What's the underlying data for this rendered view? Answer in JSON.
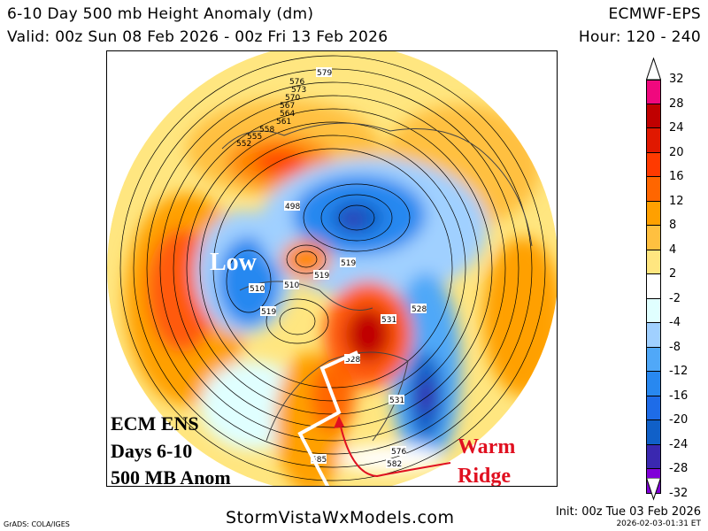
{
  "header": {
    "title": "6-10 Day 500 mb Height Anomaly (dm)",
    "model": "ECMWF-EPS",
    "valid": "Valid: 00z Sun 08 Feb 2026 - 00z Fri 13 Feb 2026",
    "hour": "Hour: 120 - 240"
  },
  "map": {
    "projection": "north-polar-stereographic",
    "contour_labels": [
      "579",
      "576",
      "573",
      "570",
      "567",
      "564",
      "561",
      "558",
      "555",
      "552",
      "498",
      "519",
      "519",
      "510",
      "510",
      "519",
      "531",
      "528",
      "528",
      "531",
      "576",
      "582",
      "585"
    ],
    "annotations": {
      "low": "Low",
      "ecm_line1": "ECM ENS",
      "ecm_line2": "Days 6-10",
      "ecm_line3": "500 MB Anom",
      "warm_line1": "Warm",
      "warm_line2": "Ridge"
    },
    "annotation_colors": {
      "low": "#ffffff",
      "ecm": "#000000",
      "warm": "#e01020",
      "arrow": "#e01020",
      "ridge_line": "#ffffff"
    }
  },
  "colorbar": {
    "labels": [
      "32",
      "28",
      "24",
      "20",
      "16",
      "12",
      "8",
      "4",
      "2",
      "-2",
      "-4",
      "-8",
      "-12",
      "-16",
      "-20",
      "-24",
      "-28",
      "-32"
    ],
    "colors": [
      "#f0087e",
      "#c00000",
      "#e01800",
      "#ff3a00",
      "#ff6600",
      "#ffa000",
      "#ffc040",
      "#ffe680",
      "#ffffff",
      "#e0ffff",
      "#a0d0ff",
      "#50a8f8",
      "#2888f0",
      "#1e6ce8",
      "#1060c8",
      "#3a28b0",
      "#8000d8"
    ]
  },
  "footer": {
    "grads": "GrADS: COLA/IGES",
    "site": "StormVistaWxModels.com",
    "init": "Init: 00z Tue 03 Feb 2026",
    "stamp": "2026-02-03-01:31 ET"
  }
}
